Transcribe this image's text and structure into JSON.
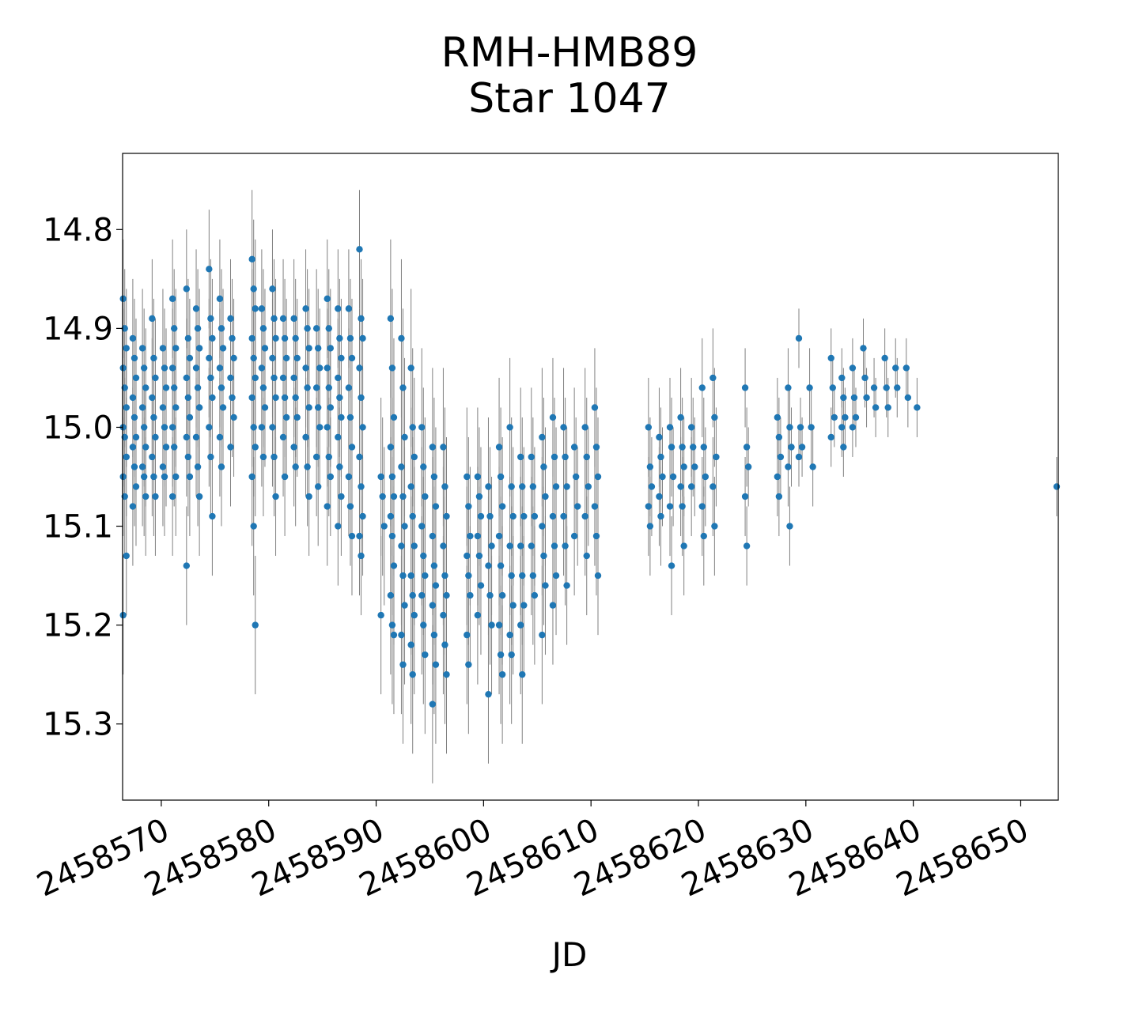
{
  "chart_data": {
    "type": "scatter",
    "title": [
      "RMH-HMB89",
      "Star 1047"
    ],
    "xlabel": "JD",
    "ylabel": "",
    "xlim": [
      2458566.4,
      2458653.5
    ],
    "ylim": [
      15.377,
      14.723
    ],
    "y_inverted": true,
    "x_ticks": [
      2458570,
      2458580,
      2458590,
      2458600,
      2458610,
      2458620,
      2458630,
      2458640,
      2458650
    ],
    "x_tick_labels": [
      "2458570",
      "2458580",
      "2458590",
      "2458600",
      "2458610",
      "2458620",
      "2458630",
      "2458640",
      "2458650"
    ],
    "y_ticks": [
      14.8,
      14.9,
      15.0,
      15.1,
      15.2,
      15.3
    ],
    "y_tick_labels": [
      "14.8",
      "14.9",
      "15.0",
      "15.1",
      "15.2",
      "15.3"
    ],
    "grid": false,
    "marker_color": "#1f77b4",
    "errorbar_color": "#808080",
    "series": [
      {
        "nights": [
          {
            "jd": 2458566.6,
            "mags": [
              14.87,
              14.9,
              14.92,
              14.94,
              14.96,
              14.98,
              15.0,
              15.01,
              15.03,
              15.05,
              15.07,
              15.13,
              15.19
            ],
            "err": 0.06
          },
          {
            "jd": 2458567.5,
            "mags": [
              14.91,
              14.93,
              14.95,
              14.97,
              14.99,
              15.01,
              15.02,
              15.04,
              15.06,
              15.08
            ],
            "err": 0.06
          },
          {
            "jd": 2458568.4,
            "mags": [
              14.92,
              14.94,
              14.96,
              14.98,
              15.0,
              15.02,
              15.04,
              15.05,
              15.07
            ],
            "err": 0.06
          },
          {
            "jd": 2458569.3,
            "mags": [
              14.89,
              14.93,
              14.95,
              14.97,
              14.99,
              15.01,
              15.03,
              15.05,
              15.07
            ],
            "err": 0.06
          },
          {
            "jd": 2458570.3,
            "mags": [
              14.92,
              14.94,
              14.96,
              14.98,
              15.0,
              15.02,
              15.04,
              15.05
            ],
            "err": 0.06
          },
          {
            "jd": 2458571.2,
            "mags": [
              14.87,
              14.9,
              14.92,
              14.94,
              14.96,
              14.98,
              15.0,
              15.02,
              15.05,
              15.07
            ],
            "err": 0.06
          },
          {
            "jd": 2458572.5,
            "mags": [
              14.86,
              14.91,
              14.93,
              14.95,
              14.97,
              14.99,
              15.01,
              15.03,
              15.05,
              15.14
            ],
            "err": 0.06
          },
          {
            "jd": 2458573.4,
            "mags": [
              14.88,
              14.9,
              14.92,
              14.94,
              14.96,
              14.98,
              15.01,
              15.04,
              15.07
            ],
            "err": 0.06
          },
          {
            "jd": 2458574.6,
            "mags": [
              14.84,
              14.89,
              14.91,
              14.93,
              14.95,
              14.97,
              15.0,
              15.03,
              15.09
            ],
            "err": 0.06
          },
          {
            "jd": 2458575.6,
            "mags": [
              14.87,
              14.9,
              14.92,
              14.94,
              14.96,
              14.98,
              15.01,
              15.04
            ],
            "err": 0.06
          },
          {
            "jd": 2458576.6,
            "mags": [
              14.89,
              14.91,
              14.93,
              14.95,
              14.97,
              14.99,
              15.02
            ],
            "err": 0.06
          },
          {
            "jd": 2458578.6,
            "mags": [
              14.83,
              14.86,
              14.88,
              14.91,
              14.93,
              14.95,
              14.97,
              15.0,
              15.02,
              15.05,
              15.1,
              15.2
            ],
            "err": 0.07
          },
          {
            "jd": 2458579.5,
            "mags": [
              14.88,
              14.9,
              14.92,
              14.94,
              14.96,
              14.98,
              15.0,
              15.03
            ],
            "err": 0.06
          },
          {
            "jd": 2458580.5,
            "mags": [
              14.86,
              14.89,
              14.91,
              14.93,
              14.95,
              14.97,
              15.0,
              15.03,
              15.07
            ],
            "err": 0.06
          },
          {
            "jd": 2458581.5,
            "mags": [
              14.89,
              14.91,
              14.93,
              14.95,
              14.97,
              14.99,
              15.01,
              15.05
            ],
            "err": 0.06
          },
          {
            "jd": 2458582.5,
            "mags": [
              14.89,
              14.91,
              14.93,
              14.95,
              14.97,
              14.99,
              15.02,
              15.04
            ],
            "err": 0.06
          },
          {
            "jd": 2458583.6,
            "mags": [
              14.88,
              14.9,
              14.92,
              14.94,
              14.96,
              14.98,
              15.01,
              15.04,
              15.07
            ],
            "err": 0.06
          },
          {
            "jd": 2458584.6,
            "mags": [
              14.9,
              14.92,
              14.94,
              14.96,
              14.98,
              15.0,
              15.03,
              15.06
            ],
            "err": 0.06
          },
          {
            "jd": 2458585.6,
            "mags": [
              14.87,
              14.9,
              14.92,
              14.94,
              14.96,
              14.98,
              15.0,
              15.03,
              15.05,
              15.08
            ],
            "err": 0.06
          },
          {
            "jd": 2458586.6,
            "mags": [
              14.88,
              14.91,
              14.93,
              14.95,
              14.97,
              14.99,
              15.01,
              15.04,
              15.07,
              15.1
            ],
            "err": 0.06
          },
          {
            "jd": 2458587.6,
            "mags": [
              14.88,
              14.91,
              14.93,
              14.96,
              14.99,
              15.02,
              15.05,
              15.08,
              15.11
            ],
            "err": 0.06
          },
          {
            "jd": 2458588.6,
            "mags": [
              14.82,
              14.89,
              14.91,
              14.94,
              14.97,
              15.0,
              15.03,
              15.06,
              15.09,
              15.11,
              15.13
            ],
            "err": 0.06
          },
          {
            "jd": 2458590.6,
            "mags": [
              15.05,
              15.07,
              15.1,
              15.19
            ],
            "err": 0.08
          },
          {
            "jd": 2458591.5,
            "mags": [
              14.89,
              14.94,
              14.99,
              15.02,
              15.05,
              15.07,
              15.09,
              15.11,
              15.14,
              15.17,
              15.2,
              15.21
            ],
            "err": 0.08
          },
          {
            "jd": 2458592.5,
            "mags": [
              14.91,
              14.96,
              15.01,
              15.04,
              15.07,
              15.1,
              15.12,
              15.15,
              15.18,
              15.21,
              15.24
            ],
            "err": 0.08
          },
          {
            "jd": 2458593.4,
            "mags": [
              14.94,
              15.0,
              15.03,
              15.06,
              15.09,
              15.12,
              15.15,
              15.17,
              15.19,
              15.22,
              15.25
            ],
            "err": 0.08
          },
          {
            "jd": 2458594.4,
            "mags": [
              15.0,
              15.04,
              15.07,
              15.1,
              15.13,
              15.15,
              15.17,
              15.2,
              15.23
            ],
            "err": 0.08
          },
          {
            "jd": 2458595.4,
            "mags": [
              15.02,
              15.05,
              15.08,
              15.11,
              15.14,
              15.16,
              15.18,
              15.21,
              15.24,
              15.28
            ],
            "err": 0.08
          },
          {
            "jd": 2458596.4,
            "mags": [
              15.02,
              15.06,
              15.09,
              15.12,
              15.15,
              15.17,
              15.19,
              15.22,
              15.25
            ],
            "err": 0.08
          },
          {
            "jd": 2458598.6,
            "mags": [
              15.05,
              15.08,
              15.11,
              15.13,
              15.15,
              15.17,
              15.21,
              15.24
            ],
            "err": 0.07
          },
          {
            "jd": 2458599.6,
            "mags": [
              15.05,
              15.07,
              15.09,
              15.11,
              15.13,
              15.16,
              15.19
            ],
            "err": 0.07
          },
          {
            "jd": 2458600.6,
            "mags": [
              15.06,
              15.09,
              15.12,
              15.14,
              15.17,
              15.2,
              15.27
            ],
            "err": 0.07
          },
          {
            "jd": 2458601.6,
            "mags": [
              15.02,
              15.05,
              15.08,
              15.11,
              15.14,
              15.17,
              15.2,
              15.23,
              15.25
            ],
            "err": 0.07
          },
          {
            "jd": 2458602.6,
            "mags": [
              15.0,
              15.06,
              15.09,
              15.12,
              15.15,
              15.18,
              15.21,
              15.23
            ],
            "err": 0.07
          },
          {
            "jd": 2458603.6,
            "mags": [
              15.03,
              15.06,
              15.09,
              15.12,
              15.15,
              15.18,
              15.2,
              15.25
            ],
            "err": 0.07
          },
          {
            "jd": 2458604.6,
            "mags": [
              15.03,
              15.06,
              15.09,
              15.12,
              15.15,
              15.17
            ],
            "err": 0.07
          },
          {
            "jd": 2458605.6,
            "mags": [
              15.01,
              15.04,
              15.07,
              15.1,
              15.13,
              15.16,
              15.21
            ],
            "err": 0.07
          },
          {
            "jd": 2458606.6,
            "mags": [
              14.99,
              15.03,
              15.06,
              15.09,
              15.12,
              15.15,
              15.18
            ],
            "err": 0.06
          },
          {
            "jd": 2458607.6,
            "mags": [
              15.0,
              15.03,
              15.06,
              15.09,
              15.12,
              15.16
            ],
            "err": 0.06
          },
          {
            "jd": 2458608.6,
            "mags": [
              15.02,
              15.05,
              15.08,
              15.11
            ],
            "err": 0.06
          },
          {
            "jd": 2458609.6,
            "mags": [
              15.0,
              15.03,
              15.06,
              15.09,
              15.13
            ],
            "err": 0.06
          },
          {
            "jd": 2458610.5,
            "mags": [
              14.98,
              15.02,
              15.05,
              15.08,
              15.11,
              15.15
            ],
            "err": 0.06
          },
          {
            "jd": 2458615.5,
            "mags": [
              15.0,
              15.04,
              15.06,
              15.08,
              15.1
            ],
            "err": 0.05
          },
          {
            "jd": 2458616.5,
            "mags": [
              15.01,
              15.03,
              15.05,
              15.07,
              15.09
            ],
            "err": 0.05
          },
          {
            "jd": 2458617.5,
            "mags": [
              15.0,
              15.02,
              15.05,
              15.08,
              15.14
            ],
            "err": 0.05
          },
          {
            "jd": 2458618.5,
            "mags": [
              14.99,
              15.02,
              15.04,
              15.06,
              15.08,
              15.12
            ],
            "err": 0.05
          },
          {
            "jd": 2458619.5,
            "mags": [
              15.0,
              15.02,
              15.04,
              15.06
            ],
            "err": 0.05
          },
          {
            "jd": 2458620.5,
            "mags": [
              14.96,
              15.02,
              15.05,
              15.08,
              15.11
            ],
            "err": 0.05
          },
          {
            "jd": 2458621.5,
            "mags": [
              14.95,
              14.99,
              15.03,
              15.06,
              15.1
            ],
            "err": 0.05
          },
          {
            "jd": 2458624.5,
            "mags": [
              14.96,
              15.02,
              15.04,
              15.07,
              15.12
            ],
            "err": 0.04
          },
          {
            "jd": 2458627.5,
            "mags": [
              14.99,
              15.01,
              15.03,
              15.05,
              15.07
            ],
            "err": 0.04
          },
          {
            "jd": 2458628.5,
            "mags": [
              14.96,
              15.0,
              15.02,
              15.04,
              15.1
            ],
            "err": 0.04
          },
          {
            "jd": 2458629.5,
            "mags": [
              14.91,
              15.0,
              15.02,
              15.03
            ],
            "err": 0.03
          },
          {
            "jd": 2458630.5,
            "mags": [
              14.96,
              15.0,
              15.04
            ],
            "err": 0.04
          },
          {
            "jd": 2458632.5,
            "mags": [
              14.93,
              14.96,
              14.99,
              15.01
            ],
            "err": 0.03
          },
          {
            "jd": 2458633.5,
            "mags": [
              14.95,
              14.97,
              14.99,
              15.0,
              15.02
            ],
            "err": 0.03
          },
          {
            "jd": 2458634.5,
            "mags": [
              14.94,
              14.97,
              14.99,
              15.0
            ],
            "err": 0.03
          },
          {
            "jd": 2458635.5,
            "mags": [
              14.92,
              14.95,
              14.97
            ],
            "err": 0.03
          },
          {
            "jd": 2458636.5,
            "mags": [
              14.96,
              14.98
            ],
            "err": 0.03
          },
          {
            "jd": 2458637.5,
            "mags": [
              14.93,
              14.96,
              14.98
            ],
            "err": 0.03
          },
          {
            "jd": 2458638.5,
            "mags": [
              14.94,
              14.96
            ],
            "err": 0.03
          },
          {
            "jd": 2458639.5,
            "mags": [
              14.94,
              14.97
            ],
            "err": 0.03
          },
          {
            "jd": 2458640.5,
            "mags": [
              14.98
            ],
            "err": 0.03
          },
          {
            "jd": 2458653.5,
            "mags": [
              15.06
            ],
            "err": 0.03
          }
        ]
      }
    ]
  }
}
